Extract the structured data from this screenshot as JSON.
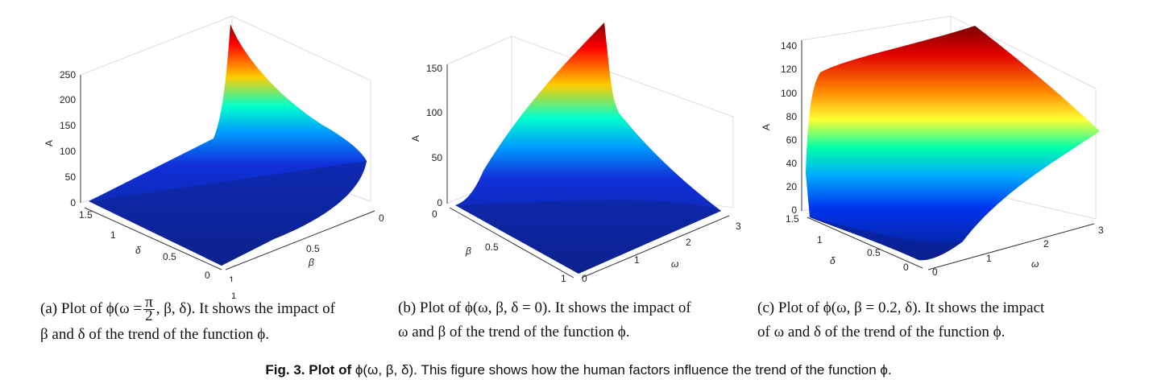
{
  "chart_data": [
    {
      "type": "surface3d",
      "zlabel": "A",
      "xlabel": "δ",
      "ylabel": "β",
      "z_ticks": [
        "0",
        "50",
        "100",
        "150",
        "200",
        "250"
      ],
      "x_ticks": [
        "1.5",
        "1",
        "0.5",
        "0"
      ],
      "y_ticks": [
        "0",
        "0.5",
        "1"
      ],
      "zlim": [
        0,
        250
      ],
      "z_max": 243,
      "colormap": "jet"
    },
    {
      "type": "surface3d",
      "zlabel": "A",
      "xlabel": "β",
      "ylabel": "ω",
      "z_ticks": [
        "0",
        "50",
        "100",
        "150"
      ],
      "x_ticks": [
        "0",
        "0.5",
        "1"
      ],
      "y_ticks": [
        "0",
        "1",
        "2",
        "3"
      ],
      "zlim": [
        0,
        150
      ],
      "z_max": 160,
      "colormap": "jet"
    },
    {
      "type": "surface3d",
      "zlabel": "A",
      "xlabel": "δ",
      "ylabel": "ω",
      "z_ticks": [
        "0",
        "20",
        "40",
        "60",
        "80",
        "100",
        "120",
        "140"
      ],
      "x_ticks": [
        "1.5",
        "1",
        "0.5",
        "0"
      ],
      "y_ticks": [
        "0",
        "1",
        "2",
        "3"
      ],
      "zlim": [
        0,
        140
      ],
      "z_max": 145,
      "colormap": "jet"
    }
  ],
  "captions": {
    "a": {
      "tag": "(a)",
      "pre": "Plot of ϕ(ω =",
      "frac_num": "π",
      "frac_den": "2",
      "post": ", β, δ). It shows the impact of",
      "line2": "β and δ of the trend of the function ϕ."
    },
    "b": {
      "line1": "(b) Plot of ϕ(ω, β, δ = 0). It shows the impact of",
      "line2": "ω and β of the trend of the function ϕ."
    },
    "c": {
      "line1": "(c) Plot of ϕ(ω, β = 0.2, δ). It shows the impact",
      "line2": "of ω and δ of the trend of the function ϕ."
    }
  },
  "figure_caption": {
    "label": "Fig. 3.",
    "bold_text": "Plot of",
    "text": "ϕ(ω, β, δ). This figure shows how the human factors influence the trend of the function ϕ."
  },
  "stray_label": "1"
}
